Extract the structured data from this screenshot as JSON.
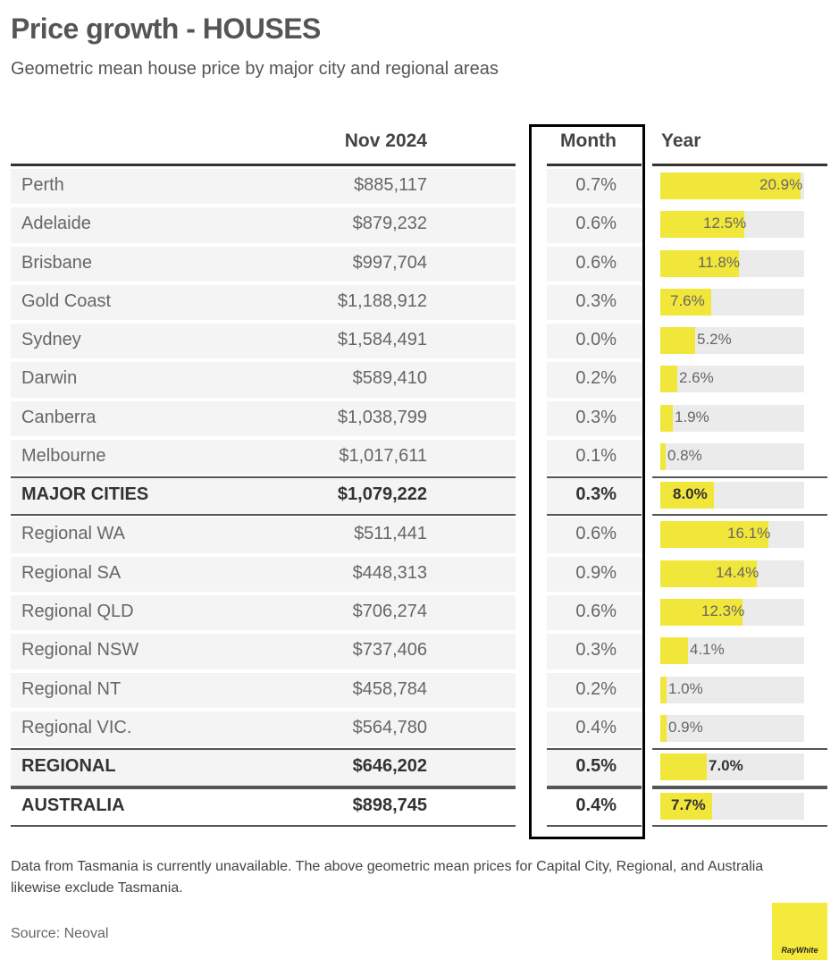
{
  "title": "Price growth - HOUSES",
  "subtitle": "Geometric mean house price by major city and regional areas",
  "headers": {
    "price": "Nov 2024",
    "month": "Month",
    "year": "Year"
  },
  "chart_data": {
    "type": "table",
    "columns": [
      "",
      "Nov 2024",
      "Month",
      "Year"
    ],
    "bar_scale_max_pct": 21.5,
    "rows": [
      {
        "name": "Perth",
        "price": "$885,117",
        "month": "0.7%",
        "year": 20.9,
        "year_label": "20.9%",
        "total": false
      },
      {
        "name": "Adelaide",
        "price": "$879,232",
        "month": "0.6%",
        "year": 12.5,
        "year_label": "12.5%",
        "total": false
      },
      {
        "name": "Brisbane",
        "price": "$997,704",
        "month": "0.6%",
        "year": 11.8,
        "year_label": "11.8%",
        "total": false
      },
      {
        "name": "Gold Coast",
        "price": "$1,188,912",
        "month": "0.3%",
        "year": 7.6,
        "year_label": "7.6%",
        "total": false
      },
      {
        "name": "Sydney",
        "price": "$1,584,491",
        "month": "0.0%",
        "year": 5.2,
        "year_label": "5.2%",
        "total": false
      },
      {
        "name": "Darwin",
        "price": "$589,410",
        "month": "0.2%",
        "year": 2.6,
        "year_label": "2.6%",
        "total": false
      },
      {
        "name": "Canberra",
        "price": "$1,038,799",
        "month": "0.3%",
        "year": 1.9,
        "year_label": "1.9%",
        "total": false
      },
      {
        "name": "Melbourne",
        "price": "$1,017,611",
        "month": "0.1%",
        "year": 0.8,
        "year_label": "0.8%",
        "total": false
      },
      {
        "name": "MAJOR CITIES",
        "price": "$1,079,222",
        "month": "0.3%",
        "year": 8.0,
        "year_label": "8.0%",
        "total": true
      },
      {
        "name": "Regional WA",
        "price": "$511,441",
        "month": "0.6%",
        "year": 16.1,
        "year_label": "16.1%",
        "total": false
      },
      {
        "name": "Regional SA",
        "price": "$448,313",
        "month": "0.9%",
        "year": 14.4,
        "year_label": "14.4%",
        "total": false
      },
      {
        "name": "Regional QLD",
        "price": "$706,274",
        "month": "0.6%",
        "year": 12.3,
        "year_label": "12.3%",
        "total": false
      },
      {
        "name": "Regional NSW",
        "price": "$737,406",
        "month": "0.3%",
        "year": 4.1,
        "year_label": "4.1%",
        "total": false
      },
      {
        "name": "Regional NT",
        "price": "$458,784",
        "month": "0.2%",
        "year": 1.0,
        "year_label": "1.0%",
        "total": false
      },
      {
        "name": "Regional VIC.",
        "price": "$564,780",
        "month": "0.4%",
        "year": 0.9,
        "year_label": "0.9%",
        "total": false
      },
      {
        "name": "REGIONAL",
        "price": "$646,202",
        "month": "0.5%",
        "year": 7.0,
        "year_label": "7.0%",
        "total": true
      },
      {
        "name": "AUSTRALIA",
        "price": "$898,745",
        "month": "0.4%",
        "year": 7.7,
        "year_label": "7.7%",
        "total": true
      }
    ]
  },
  "colors": {
    "bar": "#f1e63a",
    "bar_track": "#ebebeb",
    "row_bg": "#f4f4f4",
    "highlight_border": "#000000"
  },
  "note": "Data from Tasmania is currently unavailable. The above geometric mean prices for Capital City, Regional, and Australia likewise exclude Tasmania.",
  "source": "Source: Neoval",
  "logo_text": "RayWhite"
}
